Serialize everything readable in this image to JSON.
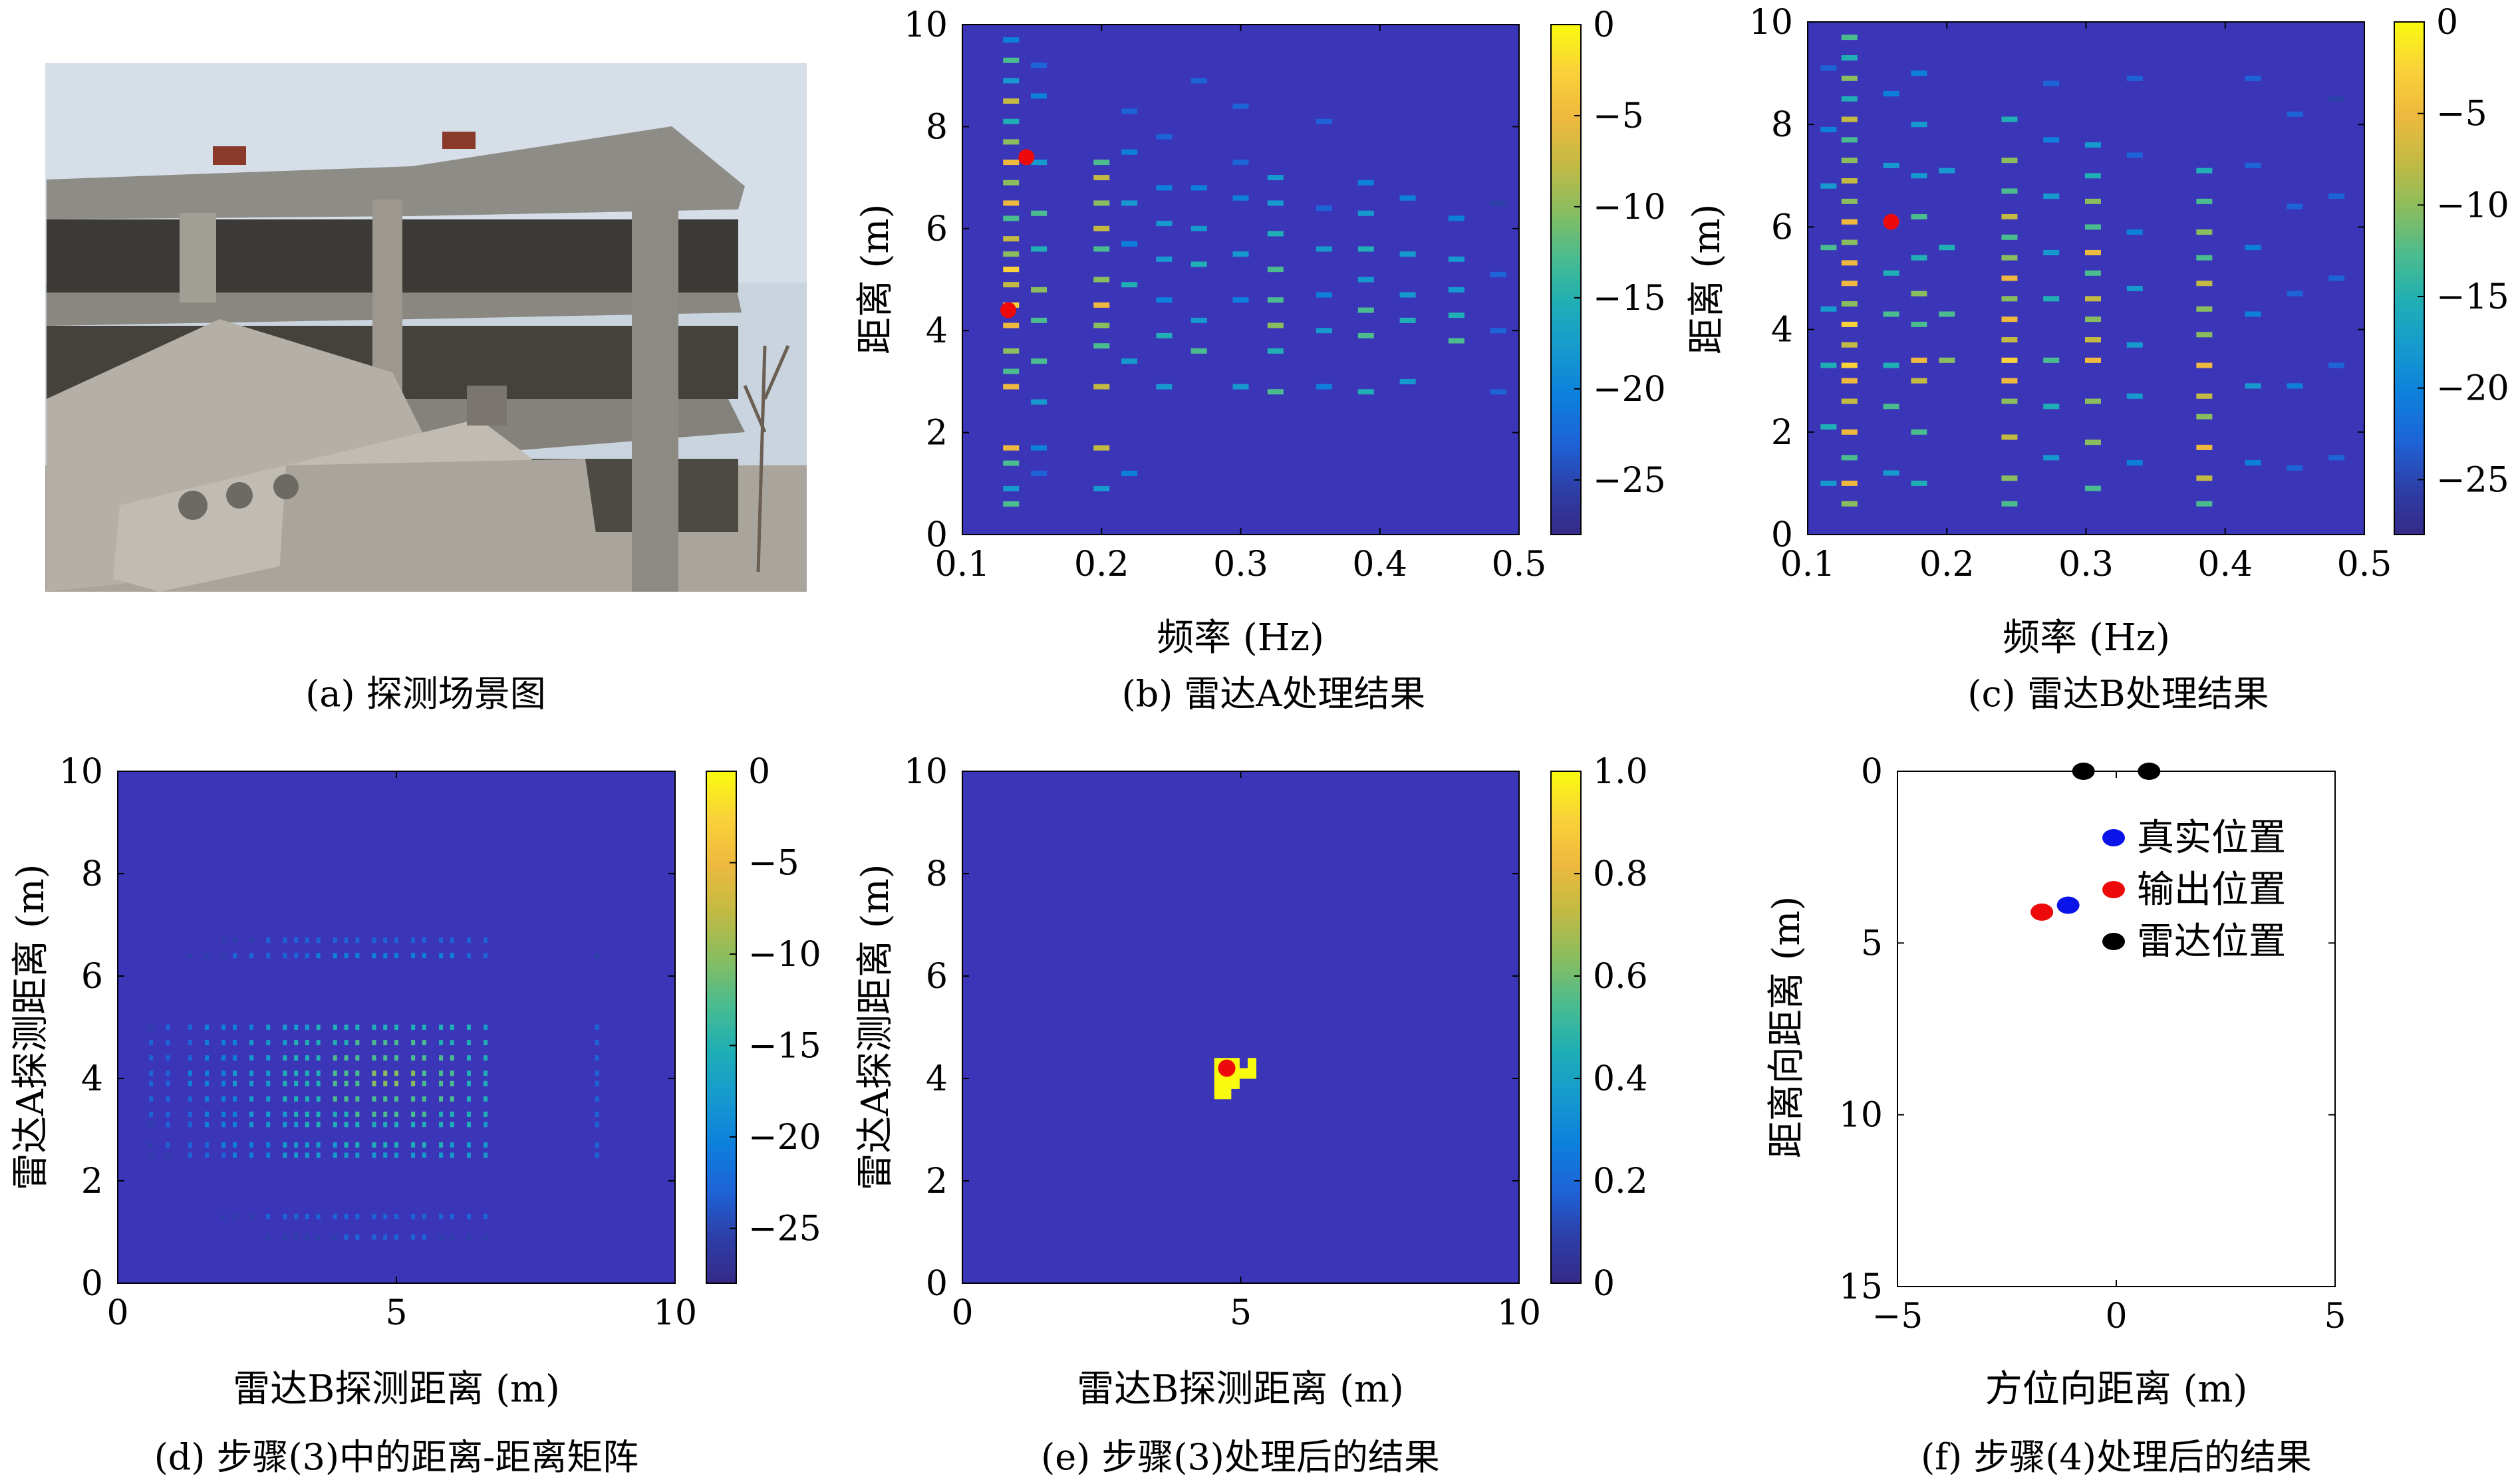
{
  "colors": {
    "plot_bg": "#3b36b8",
    "parula": [
      "#352a87",
      "#2d3fa8",
      "#1d64d8",
      "#0d80dc",
      "#169ace",
      "#1fafb4",
      "#4bbc8e",
      "#8abd5e",
      "#c3ba43",
      "#eeb93e",
      "#fad239",
      "#f9fb0e"
    ],
    "marker_true": "#0a14e8",
    "marker_out": "#ee0a0a",
    "marker_radar": "#000000"
  },
  "panels": {
    "a": {
      "caption": "(a) 探测场景图"
    },
    "b": {
      "caption": "(b) 雷达A处理结果"
    },
    "c": {
      "caption": "(c) 雷达B处理结果"
    },
    "d": {
      "caption": "(d) 步骤(3)中的距离-距离矩阵"
    },
    "e": {
      "caption": "(e) 步骤(3)处理后的结果"
    },
    "f": {
      "caption": "(f) 步骤(4)处理后的结果"
    }
  },
  "chart_data": [
    {
      "id": "b",
      "type": "heatmap",
      "xlabel": "频率 (Hz)",
      "ylabel": "距离 (m)",
      "xlim": [
        0.1,
        0.5
      ],
      "ylim": [
        10,
        0
      ],
      "xticks": [
        "0.1",
        "0.2",
        "0.3",
        "0.4",
        "0.5"
      ],
      "yticks": [
        "0",
        "2",
        "4",
        "6",
        "8",
        "10"
      ],
      "colorbar": {
        "range": [
          -28,
          0
        ],
        "ticks": [
          "0",
          "−5",
          "−10",
          "−15",
          "−20",
          "−25"
        ]
      },
      "columns": [
        {
          "freq": 0.135,
          "y": [
            0.6,
            0.9,
            1.4,
            1.7,
            2.9,
            3.2,
            3.6,
            4.1,
            4.5,
            4.9,
            5.2,
            5.5,
            5.8,
            6.2,
            6.5,
            6.9,
            7.3,
            7.7,
            8.1,
            8.5,
            8.9,
            9.3,
            9.7
          ],
          "level": [
            -14,
            -18,
            -12,
            -4,
            -6,
            -12,
            -9,
            -6,
            -3,
            -8,
            -2,
            -10,
            -7,
            -13,
            -5,
            -9,
            -4,
            -10,
            -16,
            -8,
            -18,
            -12,
            -20
          ]
        },
        {
          "freq": 0.155,
          "y": [
            1.2,
            1.7,
            2.6,
            3.4,
            4.2,
            4.8,
            5.6,
            6.3,
            7.3,
            8.6,
            9.2
          ],
          "level": [
            -22,
            -20,
            -18,
            -12,
            -14,
            -10,
            -16,
            -12,
            -18,
            -20,
            -22
          ]
        },
        {
          "freq": 0.2,
          "y": [
            0.9,
            1.7,
            2.9,
            3.7,
            4.1,
            4.5,
            5.0,
            5.6,
            6.0,
            6.5,
            7.0,
            7.3
          ],
          "level": [
            -18,
            -7,
            -8,
            -12,
            -9,
            -5,
            -11,
            -13,
            -7,
            -10,
            -8,
            -14
          ]
        },
        {
          "freq": 0.22,
          "y": [
            1.2,
            3.4,
            4.9,
            5.7,
            6.5,
            7.5,
            8.3
          ],
          "level": [
            -20,
            -18,
            -16,
            -20,
            -17,
            -20,
            -24
          ]
        },
        {
          "freq": 0.245,
          "y": [
            2.9,
            3.9,
            4.6,
            5.4,
            6.1,
            6.8,
            7.8
          ],
          "level": [
            -18,
            -16,
            -20,
            -17,
            -19,
            -21,
            -23
          ]
        },
        {
          "freq": 0.27,
          "y": [
            3.6,
            4.2,
            5.3,
            6.0,
            6.8,
            8.9
          ],
          "level": [
            -13,
            -17,
            -16,
            -18,
            -20,
            -24
          ]
        },
        {
          "freq": 0.3,
          "y": [
            2.9,
            4.6,
            5.5,
            6.6,
            7.3,
            8.4
          ],
          "level": [
            -19,
            -20,
            -18,
            -20,
            -22,
            -24
          ]
        },
        {
          "freq": 0.325,
          "y": [
            2.8,
            3.6,
            4.1,
            4.6,
            5.2,
            5.9,
            6.5,
            7.0
          ],
          "level": [
            -13,
            -15,
            -10,
            -14,
            -13,
            -16,
            -18,
            -17
          ]
        },
        {
          "freq": 0.36,
          "y": [
            2.9,
            4.0,
            4.7,
            5.6,
            6.4,
            8.1
          ],
          "level": [
            -20,
            -18,
            -21,
            -19,
            -22,
            -24
          ]
        },
        {
          "freq": 0.39,
          "y": [
            2.8,
            3.9,
            4.4,
            5.0,
            5.6,
            6.3,
            6.9
          ],
          "level": [
            -15,
            -14,
            -13,
            -17,
            -16,
            -19,
            -20
          ]
        },
        {
          "freq": 0.42,
          "y": [
            3.0,
            4.2,
            4.7,
            5.5,
            6.6
          ],
          "level": [
            -17,
            -16,
            -18,
            -19,
            -21
          ]
        },
        {
          "freq": 0.455,
          "y": [
            3.8,
            4.3,
            4.8,
            5.4,
            6.2
          ],
          "level": [
            -14,
            -16,
            -17,
            -18,
            -20
          ]
        },
        {
          "freq": 0.485,
          "y": [
            2.8,
            4.0,
            5.1,
            6.5
          ],
          "level": [
            -22,
            -23,
            -24,
            -25
          ]
        }
      ],
      "markers": [
        {
          "x": 0.133,
          "y": 4.4
        },
        {
          "x": 0.146,
          "y": 7.4
        }
      ]
    },
    {
      "id": "c",
      "type": "heatmap",
      "xlabel": "频率 (Hz)",
      "ylabel": "距离 (m)",
      "xlim": [
        0.1,
        0.5
      ],
      "ylim": [
        10,
        0
      ],
      "xticks": [
        "0.1",
        "0.2",
        "0.3",
        "0.4",
        "0.5"
      ],
      "yticks": [
        "0",
        "2",
        "4",
        "6",
        "8",
        "10"
      ],
      "colorbar": {
        "range": [
          -28,
          0
        ],
        "ticks": [
          "0",
          "−5",
          "−10",
          "−15",
          "−20",
          "−25"
        ]
      },
      "columns": [
        {
          "freq": 0.115,
          "y": [
            1.0,
            2.1,
            3.3,
            4.4,
            5.6,
            6.8,
            7.9,
            9.1
          ],
          "level": [
            -18,
            -16,
            -15,
            -17,
            -14,
            -18,
            -20,
            -22
          ]
        },
        {
          "freq": 0.13,
          "y": [
            0.6,
            1.0,
            1.5,
            2.0,
            2.6,
            3.0,
            3.3,
            3.7,
            4.1,
            4.5,
            4.9,
            5.3,
            5.7,
            6.1,
            6.5,
            6.9,
            7.3,
            7.7,
            8.1,
            8.5,
            8.9,
            9.3,
            9.7
          ],
          "level": [
            -10,
            -6,
            -12,
            -4,
            -8,
            -5,
            -3,
            -7,
            -2,
            -9,
            -4,
            -6,
            -10,
            -5,
            -11,
            -7,
            -9,
            -13,
            -8,
            -15,
            -11,
            -16,
            -13
          ]
        },
        {
          "freq": 0.16,
          "y": [
            1.2,
            2.5,
            3.3,
            4.3,
            5.1,
            6.1,
            7.2,
            8.6
          ],
          "level": [
            -17,
            -12,
            -15,
            -13,
            -16,
            -14,
            -18,
            -20
          ]
        },
        {
          "freq": 0.18,
          "y": [
            1.0,
            2.0,
            3.0,
            3.4,
            4.1,
            4.7,
            5.4,
            6.2,
            7.0,
            8.0,
            9.0
          ],
          "level": [
            -16,
            -14,
            -8,
            -6,
            -12,
            -10,
            -15,
            -13,
            -18,
            -19,
            -21
          ]
        },
        {
          "freq": 0.2,
          "y": [
            3.4,
            4.3,
            5.6,
            7.1
          ],
          "level": [
            -9,
            -14,
            -16,
            -19
          ]
        },
        {
          "freq": 0.245,
          "y": [
            0.6,
            1.1,
            1.9,
            2.6,
            3.0,
            3.4,
            3.8,
            4.2,
            4.6,
            5.0,
            5.4,
            5.8,
            6.2,
            6.7,
            7.3,
            8.1
          ],
          "level": [
            -12,
            -9,
            -7,
            -10,
            -5,
            -3,
            -8,
            -6,
            -11,
            -4,
            -9,
            -12,
            -7,
            -14,
            -10,
            -16
          ]
        },
        {
          "freq": 0.275,
          "y": [
            1.5,
            2.5,
            3.4,
            4.6,
            5.5,
            6.6,
            7.7,
            8.8
          ],
          "level": [
            -18,
            -15,
            -13,
            -16,
            -17,
            -18,
            -20,
            -22
          ]
        },
        {
          "freq": 0.305,
          "y": [
            0.9,
            1.8,
            2.6,
            3.4,
            3.8,
            4.2,
            4.6,
            5.1,
            5.5,
            6.0,
            6.5,
            7.0,
            7.6
          ],
          "level": [
            -14,
            -9,
            -11,
            -4,
            -7,
            -10,
            -8,
            -12,
            -6,
            -13,
            -9,
            -15,
            -17
          ]
        },
        {
          "freq": 0.335,
          "y": [
            1.4,
            2.7,
            3.7,
            4.8,
            5.9,
            7.4,
            8.9
          ],
          "level": [
            -20,
            -18,
            -17,
            -19,
            -20,
            -22,
            -24
          ]
        },
        {
          "freq": 0.385,
          "y": [
            0.6,
            1.1,
            1.7,
            2.3,
            2.7,
            3.3,
            3.9,
            4.4,
            4.9,
            5.4,
            5.9,
            6.5,
            7.1
          ],
          "level": [
            -12,
            -8,
            -5,
            -10,
            -7,
            -4,
            -9,
            -11,
            -7,
            -12,
            -10,
            -14,
            -16
          ]
        },
        {
          "freq": 0.42,
          "y": [
            1.4,
            2.9,
            4.3,
            5.6,
            7.2,
            8.9
          ],
          "level": [
            -20,
            -19,
            -21,
            -20,
            -22,
            -24
          ]
        },
        {
          "freq": 0.45,
          "y": [
            1.3,
            2.9,
            4.7,
            6.4,
            8.2
          ],
          "level": [
            -22,
            -21,
            -23,
            -22,
            -24
          ]
        },
        {
          "freq": 0.48,
          "y": [
            1.5,
            3.3,
            5.0,
            6.6,
            8.5
          ],
          "level": [
            -22,
            -23,
            -24,
            -23,
            -25
          ]
        }
      ],
      "markers": [
        {
          "x": 0.16,
          "y": 6.1
        }
      ]
    },
    {
      "id": "d",
      "type": "heatmap",
      "xlabel": "雷达B探测距离 (m)",
      "ylabel": "雷达A探测距离 (m)",
      "xlim": [
        0,
        10
      ],
      "ylim": [
        10,
        0
      ],
      "xticks": [
        "0",
        "5",
        "10"
      ],
      "yticks": [
        "0",
        "2",
        "4",
        "6",
        "8",
        "10"
      ],
      "colorbar": {
        "range": [
          -28,
          0
        ],
        "ticks": [
          "0",
          "−5",
          "−10",
          "−15",
          "−20",
          "−25"
        ]
      },
      "rows": [
        0.9,
        1.3,
        2.5,
        2.7,
        3.1,
        3.3,
        3.6,
        3.9,
        4.1,
        4.4,
        4.7,
        5.0,
        6.4,
        6.7
      ],
      "cols": [
        0.6,
        0.9,
        1.3,
        1.6,
        1.9,
        2.1,
        2.4,
        2.7,
        3.0,
        3.2,
        3.4,
        3.6,
        3.9,
        4.1,
        4.3,
        4.6,
        4.8,
        5.0,
        5.3,
        5.5,
        5.8,
        6.0,
        6.3,
        6.6,
        8.6
      ],
      "peak": {
        "x": 4.9,
        "y": 4.0
      }
    },
    {
      "id": "e",
      "type": "heatmap",
      "xlabel": "雷达B探测距离 (m)",
      "ylabel": "雷达A探测距离 (m)",
      "xlim": [
        0,
        10
      ],
      "ylim": [
        10,
        0
      ],
      "xticks": [
        "0",
        "5",
        "10"
      ],
      "yticks": [
        "0",
        "2",
        "4",
        "6",
        "8",
        "10"
      ],
      "colorbar": {
        "range": [
          0,
          1
        ],
        "ticks": [
          "1.0",
          "0.8",
          "0.6",
          "0.4",
          "0.2",
          "0"
        ]
      },
      "region_cells": [
        [
          4.6,
          3.7
        ],
        [
          4.75,
          3.7
        ],
        [
          4.6,
          3.9
        ],
        [
          4.75,
          3.9
        ],
        [
          4.9,
          3.9
        ],
        [
          4.6,
          4.1
        ],
        [
          4.75,
          4.1
        ],
        [
          4.9,
          4.1
        ],
        [
          5.05,
          4.1
        ],
        [
          5.2,
          4.1
        ],
        [
          4.6,
          4.3
        ],
        [
          4.75,
          4.3
        ],
        [
          4.9,
          4.3
        ],
        [
          5.2,
          4.3
        ]
      ],
      "markers": [
        {
          "x": 4.75,
          "y": 4.2
        }
      ]
    },
    {
      "id": "f",
      "type": "scatter",
      "xlabel": "方位向距离 (m)",
      "ylabel": "距离向距离 (m)",
      "xlim": [
        -5,
        5
      ],
      "ylim": [
        0,
        15
      ],
      "xticks": [
        "−5",
        "0",
        "5"
      ],
      "yticks": [
        "0",
        "5",
        "10",
        "15"
      ],
      "series": [
        {
          "name": "真实位置",
          "color": "#0a14e8",
          "points": [
            [
              -1.1,
              3.9
            ]
          ]
        },
        {
          "name": "输出位置",
          "color": "#ee0a0a",
          "points": [
            [
              -1.7,
              4.1
            ]
          ]
        },
        {
          "name": "雷达位置",
          "color": "#000000",
          "points": [
            [
              -0.75,
              0
            ],
            [
              0.75,
              0
            ]
          ]
        }
      ],
      "legend": "top-right"
    }
  ]
}
